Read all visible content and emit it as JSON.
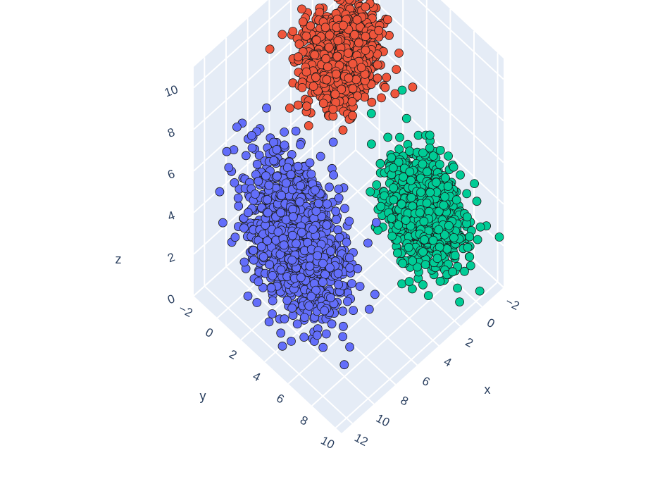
{
  "chart_data": {
    "type": "scatter3d",
    "title": "",
    "axes": {
      "x": {
        "label": "x",
        "range": [
          -2,
          13
        ],
        "ticks": [
          -2,
          0,
          2,
          4,
          6,
          8,
          10,
          12
        ]
      },
      "y": {
        "label": "y",
        "range": [
          -2,
          10.5
        ],
        "ticks": [
          -2,
          0,
          2,
          4,
          6,
          8,
          10
        ]
      },
      "z": {
        "label": "z",
        "range": [
          0,
          11
        ],
        "ticks": [
          0,
          2,
          4,
          6,
          8,
          10
        ]
      }
    },
    "grid": true,
    "legend": "none",
    "colors": {
      "pane": "#e5ecf6",
      "grid": "#ffffff",
      "text": "#2a3f5f",
      "marker_outline": "#1a1a1a"
    },
    "clusters": [
      {
        "color": "#636efa",
        "center": [
          10.5,
          4.5,
          5.0
        ],
        "spread": [
          1.6,
          3.4,
          3.0
        ]
      },
      {
        "color": "#ef553b",
        "center": [
          2.8,
          1.2,
          8.5
        ],
        "spread": [
          2.4,
          1.8,
          1.4
        ]
      },
      {
        "color": "#00cc96",
        "center": [
          2.0,
          7.5,
          4.0
        ],
        "spread": [
          1.6,
          2.4,
          2.0
        ]
      }
    ]
  }
}
